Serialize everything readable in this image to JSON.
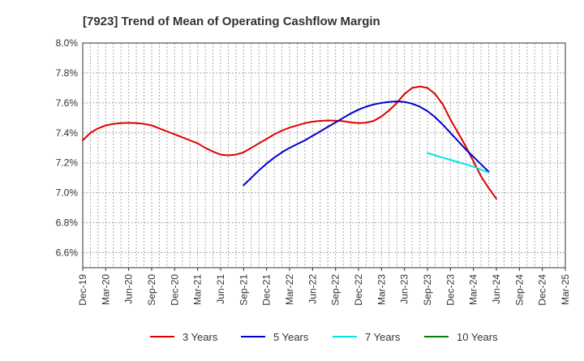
{
  "chart_data": {
    "type": "line",
    "title": "[7923]  Trend of Mean of Operating Cashflow Margin",
    "xlabel": "",
    "ylabel": "",
    "ylim": [
      6.5,
      8.0
    ],
    "yticks": [
      6.6,
      6.8,
      7.0,
      7.2,
      7.4,
      7.6,
      7.8,
      8.0
    ],
    "y_tick_labels": [
      "6.6%",
      "6.8%",
      "7.0%",
      "7.2%",
      "7.4%",
      "7.6%",
      "7.8%",
      "8.0%"
    ],
    "x_tick_labels": [
      "Dec-19",
      "Mar-20",
      "Jun-20",
      "Sep-20",
      "Dec-20",
      "Mar-21",
      "Jun-21",
      "Sep-21",
      "Dec-21",
      "Mar-22",
      "Jun-22",
      "Sep-22",
      "Dec-22",
      "Mar-23",
      "Jun-23",
      "Sep-23",
      "Dec-23",
      "Mar-24",
      "Jun-24",
      "Sep-24",
      "Dec-24",
      "Mar-25"
    ],
    "x_range_months": [
      0,
      63
    ],
    "grid": true,
    "legend_position": "bottom",
    "series": [
      {
        "name": "3 Years",
        "color": "#dd0000",
        "points": [
          [
            0,
            7.35
          ],
          [
            1,
            7.4
          ],
          [
            2,
            7.43
          ],
          [
            3,
            7.45
          ],
          [
            4,
            7.46
          ],
          [
            5,
            7.465
          ],
          [
            6,
            7.467
          ],
          [
            7,
            7.465
          ],
          [
            8,
            7.46
          ],
          [
            9,
            7.45
          ],
          [
            10,
            7.43
          ],
          [
            11,
            7.41
          ],
          [
            12,
            7.39
          ],
          [
            13,
            7.37
          ],
          [
            14,
            7.35
          ],
          [
            15,
            7.33
          ],
          [
            16,
            7.3
          ],
          [
            17,
            7.275
          ],
          [
            18,
            7.255
          ],
          [
            19,
            7.25
          ],
          [
            20,
            7.255
          ],
          [
            21,
            7.27
          ],
          [
            22,
            7.3
          ],
          [
            23,
            7.33
          ],
          [
            24,
            7.36
          ],
          [
            25,
            7.39
          ],
          [
            26,
            7.415
          ],
          [
            27,
            7.435
          ],
          [
            28,
            7.45
          ],
          [
            29,
            7.465
          ],
          [
            30,
            7.475
          ],
          [
            31,
            7.48
          ],
          [
            32,
            7.483
          ],
          [
            33,
            7.482
          ],
          [
            34,
            7.478
          ],
          [
            35,
            7.47
          ],
          [
            36,
            7.465
          ],
          [
            37,
            7.468
          ],
          [
            38,
            7.48
          ],
          [
            39,
            7.51
          ],
          [
            40,
            7.55
          ],
          [
            41,
            7.6
          ],
          [
            42,
            7.66
          ],
          [
            43,
            7.7
          ],
          [
            44,
            7.71
          ],
          [
            45,
            7.7
          ],
          [
            46,
            7.66
          ],
          [
            47,
            7.59
          ],
          [
            48,
            7.49
          ],
          [
            49,
            7.4
          ],
          [
            50,
            7.31
          ],
          [
            51,
            7.21
          ],
          [
            52,
            7.11
          ],
          [
            53,
            7.03
          ],
          [
            54,
            6.96
          ]
        ]
      },
      {
        "name": "5 Years",
        "color": "#0000cc",
        "points": [
          [
            21,
            7.05
          ],
          [
            22,
            7.1
          ],
          [
            23,
            7.15
          ],
          [
            24,
            7.195
          ],
          [
            25,
            7.235
          ],
          [
            26,
            7.27
          ],
          [
            27,
            7.3
          ],
          [
            28,
            7.325
          ],
          [
            29,
            7.35
          ],
          [
            30,
            7.38
          ],
          [
            31,
            7.41
          ],
          [
            32,
            7.44
          ],
          [
            33,
            7.47
          ],
          [
            34,
            7.5
          ],
          [
            35,
            7.53
          ],
          [
            36,
            7.555
          ],
          [
            37,
            7.575
          ],
          [
            38,
            7.59
          ],
          [
            39,
            7.6
          ],
          [
            40,
            7.607
          ],
          [
            41,
            7.61
          ],
          [
            42,
            7.607
          ],
          [
            43,
            7.595
          ],
          [
            44,
            7.575
          ],
          [
            45,
            7.545
          ],
          [
            46,
            7.505
          ],
          [
            47,
            7.455
          ],
          [
            48,
            7.4
          ],
          [
            49,
            7.345
          ],
          [
            50,
            7.29
          ],
          [
            51,
            7.24
          ],
          [
            52,
            7.19
          ],
          [
            53,
            7.14
          ]
        ]
      },
      {
        "name": "7 Years",
        "color": "#00e5e5",
        "points": [
          [
            45,
            7.265
          ],
          [
            46,
            7.25
          ],
          [
            47,
            7.235
          ],
          [
            48,
            7.22
          ],
          [
            49,
            7.205
          ],
          [
            50,
            7.19
          ],
          [
            51,
            7.175
          ],
          [
            52,
            7.155
          ],
          [
            53,
            7.135
          ]
        ]
      },
      {
        "name": "10 Years",
        "color": "#008000",
        "points": []
      }
    ]
  }
}
